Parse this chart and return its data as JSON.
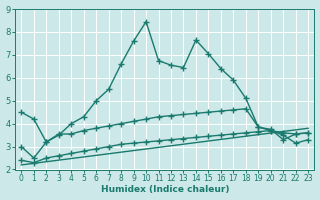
{
  "xlabel": "Humidex (Indice chaleur)",
  "bg_color": "#cce8e8",
  "line_color": "#1a7a6e",
  "grid_color": "#b8d8d8",
  "ylim": [
    2,
    9
  ],
  "xlim": [
    -0.5,
    23.5
  ],
  "yticks": [
    2,
    3,
    4,
    5,
    6,
    7,
    8,
    9
  ],
  "xticks": [
    0,
    1,
    2,
    3,
    4,
    5,
    6,
    7,
    8,
    9,
    10,
    11,
    12,
    13,
    14,
    15,
    16,
    17,
    18,
    19,
    20,
    21,
    22,
    23
  ],
  "series1_x": [
    0,
    1,
    2,
    3,
    4,
    5,
    6,
    7,
    8,
    9,
    10,
    11,
    12,
    13,
    14,
    15,
    16,
    17,
    18,
    19,
    20,
    21,
    22,
    23
  ],
  "series1_y": [
    4.5,
    4.2,
    3.2,
    3.5,
    4.0,
    4.3,
    5.0,
    5.5,
    6.6,
    7.6,
    8.45,
    6.75,
    6.55,
    6.45,
    7.65,
    7.05,
    6.4,
    5.9,
    5.1,
    3.85,
    3.7,
    3.6,
    3.55,
    3.6
  ],
  "series2_x": [
    0,
    1,
    2,
    3,
    4,
    5,
    6,
    7,
    8,
    9,
    10,
    11,
    12,
    13,
    14,
    15,
    16,
    17,
    18,
    19,
    20,
    21,
    22,
    23
  ],
  "series2_y": [
    3.0,
    2.5,
    3.2,
    3.55,
    3.55,
    3.7,
    3.8,
    3.9,
    4.0,
    4.1,
    4.2,
    4.3,
    4.35,
    4.4,
    4.45,
    4.5,
    4.55,
    4.6,
    4.65,
    3.85,
    3.75,
    3.3,
    3.55,
    3.6
  ],
  "series3_x": [
    0,
    1,
    2,
    3,
    4,
    5,
    6,
    7,
    8,
    9,
    10,
    11,
    12,
    13,
    14,
    15,
    16,
    17,
    18,
    19,
    20,
    21,
    22,
    23
  ],
  "series3_y": [
    2.4,
    2.3,
    2.5,
    2.6,
    2.7,
    2.8,
    2.9,
    3.0,
    3.1,
    3.15,
    3.2,
    3.25,
    3.3,
    3.35,
    3.4,
    3.45,
    3.5,
    3.55,
    3.6,
    3.65,
    3.7,
    3.5,
    3.15,
    3.3
  ],
  "series4_x": [
    0,
    23
  ],
  "series4_y": [
    2.2,
    3.8
  ],
  "linewidth": 1.0,
  "marker": "+",
  "marker_size": 4
}
